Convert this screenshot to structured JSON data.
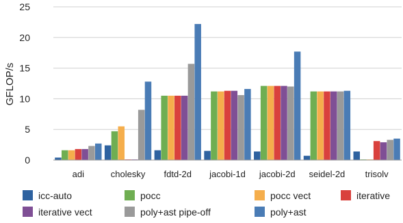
{
  "chart_data": {
    "type": "bar",
    "title": "",
    "xlabel": "",
    "ylabel": "GFLOP/s",
    "ylim": [
      0,
      25
    ],
    "yticks": [
      0,
      5,
      10,
      15,
      20,
      25
    ],
    "grid": "horizontal",
    "legend_position": "bottom",
    "categories": [
      "adi",
      "cholesky",
      "fdtd-2d",
      "jacobi-1d",
      "jacobi-2d",
      "seidel-2d",
      "trisolv"
    ],
    "series": [
      {
        "name": "icc-auto",
        "color": "#2e62a0",
        "values": [
          0.4,
          2.4,
          1.6,
          1.5,
          1.4,
          0.7,
          1.4
        ]
      },
      {
        "name": "pocc",
        "color": "#6fae52",
        "values": [
          1.6,
          4.7,
          10.5,
          11.2,
          12.1,
          11.2,
          0.1
        ]
      },
      {
        "name": "pocc vect",
        "color": "#f5ae4c",
        "values": [
          1.6,
          5.5,
          10.5,
          11.2,
          12.1,
          11.2,
          0.1
        ]
      },
      {
        "name": "iterative",
        "color": "#d9413d",
        "values": [
          1.8,
          0.1,
          10.5,
          11.3,
          12.1,
          11.2,
          3.1
        ]
      },
      {
        "name": "iterative vect",
        "color": "#7f4f95",
        "values": [
          1.8,
          0.1,
          10.5,
          11.3,
          12.1,
          11.2,
          2.9
        ]
      },
      {
        "name": "poly+ast pipe-off",
        "color": "#9a9a9a",
        "values": [
          2.3,
          8.2,
          15.7,
          10.6,
          12.0,
          11.2,
          3.3
        ]
      },
      {
        "name": "poly+ast",
        "color": "#4a7cb5",
        "values": [
          2.7,
          12.8,
          22.2,
          11.6,
          17.7,
          11.3,
          3.5
        ]
      }
    ]
  }
}
